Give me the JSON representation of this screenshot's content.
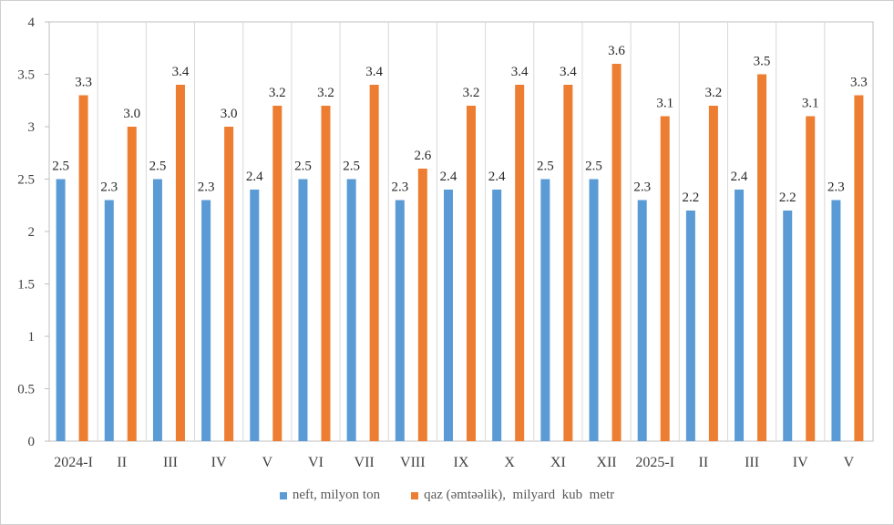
{
  "chart_data": {
    "type": "bar",
    "title": "",
    "xlabel": "",
    "ylabel": "",
    "ylim": [
      0,
      4
    ],
    "yticks": [
      "0",
      "0.5",
      "1",
      "1.5",
      "2",
      "2.5",
      "3",
      "3.5",
      "4"
    ],
    "grid": "vertical category lines",
    "legend_position": "bottom",
    "categories": [
      "2024-I",
      "II",
      "III",
      "IV",
      "V",
      "VI",
      "VII",
      "VIII",
      "IX",
      "X",
      "XI",
      "XII",
      "2025-I",
      "II",
      "III",
      "IV",
      "V"
    ],
    "series": [
      {
        "name": "neft, milyon ton",
        "color": "#5b9bd5",
        "values": [
          2.5,
          2.3,
          2.5,
          2.3,
          2.4,
          2.5,
          2.5,
          2.3,
          2.4,
          2.4,
          2.5,
          2.5,
          2.3,
          2.2,
          2.4,
          2.2,
          2.3
        ],
        "labels": [
          "2.5",
          "2.3",
          "2.5",
          "2.3",
          "2.4",
          "2.5",
          "2.5",
          "2.3",
          "2.4",
          "2.4",
          "2.5",
          "2.5",
          "2.3",
          "2.2",
          "2.4",
          "2.2",
          "2.3"
        ]
      },
      {
        "name": "qaz (əmtəəlik),  milyard  kub  metr",
        "color": "#ed7d31",
        "values": [
          3.3,
          3.0,
          3.4,
          3.0,
          3.2,
          3.2,
          3.4,
          2.6,
          3.2,
          3.4,
          3.4,
          3.6,
          3.1,
          3.2,
          3.5,
          3.1,
          3.3
        ],
        "labels": [
          "3.3",
          "3.0",
          "3.4",
          "3.0",
          "3.2",
          "3.2",
          "3.4",
          "2.6",
          "3.2",
          "3.4",
          "3.4",
          "3.6",
          "3.1",
          "3.2",
          "3.5",
          "3.1",
          "3.3"
        ]
      }
    ]
  }
}
